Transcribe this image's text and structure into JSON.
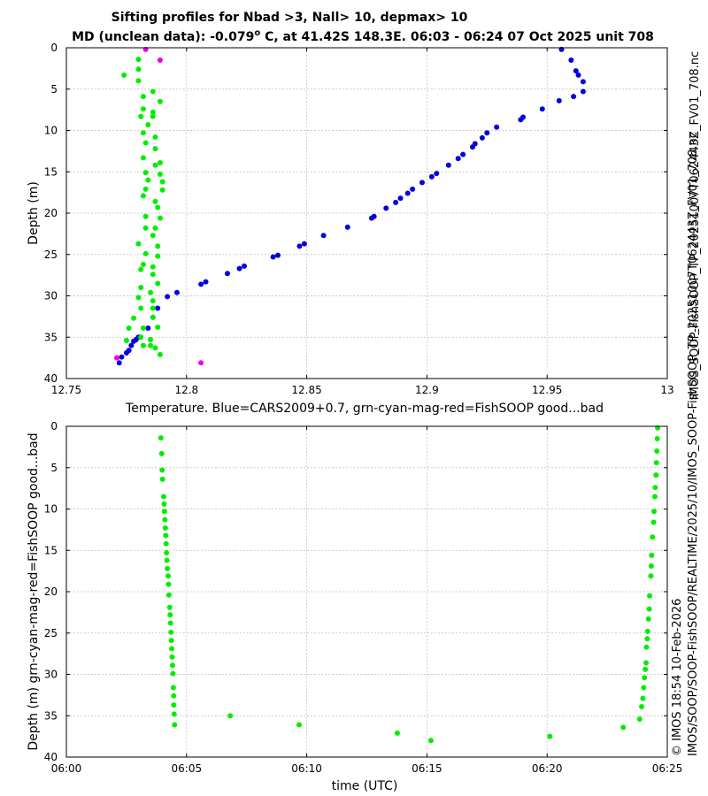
{
  "title": {
    "line1": "Sifting profiles for Nbad >3, Nall> 10, depmax> 10",
    "line2_prefix": "MD (unclean data): -0.079",
    "line2_sup": "o",
    "line2_suffix": " C, at 41.42S 148.3E. 06:03 - 06:24 07 Oct 2025 unit 708"
  },
  "side_labels": {
    "right": "IMOS_SOOP-FishSOOP_TP_20251007T062443Z_FV01_708.nc",
    "bottom_right_line1": "© IMOS 18:54 10-Feb-2026",
    "bottom_right_line2": "IMOS/SOOP/SOOP-FishSOOP/REALTIME/2025/10/IMOS_SOOP-FishSOOP_TP_20251007T062443Z_FV01_708.nc"
  },
  "colors": {
    "blue": "#0000dd",
    "green": "#00ee00",
    "magenta": "#ee00ee"
  },
  "chart_data": [
    {
      "type": "scatter",
      "xlabel": "Temperature. Blue=CARS2009+0.7, grn-cyan-mag-red=FishSOOP good...bad",
      "ylabel": "Depth (m)",
      "xlim": [
        12.75,
        13.0
      ],
      "ylim": [
        0,
        40
      ],
      "y_inverted": true,
      "grid": true,
      "xticks": [
        12.75,
        12.8,
        12.85,
        12.9,
        12.95,
        13.0
      ],
      "xtick_labels": [
        "12.75",
        "12.8",
        "12.85",
        "12.9",
        "12.95",
        "13"
      ],
      "yticks": [
        0,
        5,
        10,
        15,
        20,
        25,
        30,
        35,
        40
      ],
      "ytick_labels": [
        "0",
        "5",
        "10",
        "15",
        "20",
        "25",
        "30",
        "35",
        "40"
      ],
      "series": [
        {
          "color": "blue",
          "points": [
            [
              12.956,
              0.2
            ],
            [
              12.96,
              1.5
            ],
            [
              12.962,
              2.8
            ],
            [
              12.963,
              3.3
            ],
            [
              12.965,
              4.1
            ],
            [
              12.965,
              5.3
            ],
            [
              12.961,
              5.9
            ],
            [
              12.955,
              6.4
            ],
            [
              12.948,
              7.4
            ],
            [
              12.94,
              8.4
            ],
            [
              12.939,
              8.7
            ],
            [
              12.929,
              9.6
            ],
            [
              12.925,
              10.3
            ],
            [
              12.923,
              10.9
            ],
            [
              12.92,
              11.6
            ],
            [
              12.919,
              12.0
            ],
            [
              12.915,
              12.9
            ],
            [
              12.913,
              13.4
            ],
            [
              12.909,
              14.2
            ],
            [
              12.904,
              15.2
            ],
            [
              12.902,
              15.6
            ],
            [
              12.898,
              16.3
            ],
            [
              12.894,
              17.1
            ],
            [
              12.892,
              17.6
            ],
            [
              12.889,
              18.2
            ],
            [
              12.887,
              18.7
            ],
            [
              12.883,
              19.4
            ],
            [
              12.878,
              20.4
            ],
            [
              12.877,
              20.6
            ],
            [
              12.867,
              21.7
            ],
            [
              12.857,
              22.7
            ],
            [
              12.849,
              23.7
            ],
            [
              12.847,
              24.0
            ],
            [
              12.838,
              25.1
            ],
            [
              12.836,
              25.3
            ],
            [
              12.824,
              26.4
            ],
            [
              12.822,
              26.7
            ],
            [
              12.817,
              27.3
            ],
            [
              12.808,
              28.3
            ],
            [
              12.806,
              28.6
            ],
            [
              12.796,
              29.6
            ],
            [
              12.792,
              30.1
            ],
            [
              12.788,
              31.5
            ],
            [
              12.786,
              32.6
            ],
            [
              12.784,
              33.9
            ],
            [
              12.78,
              35.0
            ],
            [
              12.779,
              35.3
            ],
            [
              12.778,
              35.5
            ],
            [
              12.777,
              36.0
            ],
            [
              12.776,
              36.6
            ],
            [
              12.775,
              36.9
            ],
            [
              12.773,
              37.4
            ],
            [
              12.772,
              38.1
            ]
          ]
        },
        {
          "color": "green",
          "points": [
            [
              12.78,
              1.4
            ],
            [
              12.78,
              2.6
            ],
            [
              12.774,
              3.3
            ],
            [
              12.78,
              4.0
            ],
            [
              12.786,
              5.3
            ],
            [
              12.789,
              6.5
            ],
            [
              12.782,
              5.9
            ],
            [
              12.782,
              7.4
            ],
            [
              12.786,
              7.8
            ],
            [
              12.781,
              8.3
            ],
            [
              12.786,
              8.3
            ],
            [
              12.784,
              9.3
            ],
            [
              12.782,
              10.3
            ],
            [
              12.787,
              10.8
            ],
            [
              12.783,
              11.5
            ],
            [
              12.787,
              12.2
            ],
            [
              12.782,
              13.3
            ],
            [
              12.789,
              13.9
            ],
            [
              12.787,
              14.2
            ],
            [
              12.783,
              15.1
            ],
            [
              12.789,
              15.3
            ],
            [
              12.784,
              16.0
            ],
            [
              12.79,
              16.2
            ],
            [
              12.79,
              17.2
            ],
            [
              12.783,
              17.1
            ],
            [
              12.782,
              17.9
            ],
            [
              12.787,
              18.6
            ],
            [
              12.788,
              19.3
            ],
            [
              12.783,
              20.4
            ],
            [
              12.789,
              20.6
            ],
            [
              12.783,
              21.8
            ],
            [
              12.787,
              21.8
            ],
            [
              12.786,
              22.7
            ],
            [
              12.78,
              23.7
            ],
            [
              12.788,
              24.0
            ],
            [
              12.783,
              24.9
            ],
            [
              12.788,
              25.2
            ],
            [
              12.782,
              26.2
            ],
            [
              12.786,
              26.5
            ],
            [
              12.781,
              26.8
            ],
            [
              12.786,
              27.4
            ],
            [
              12.788,
              28.5
            ],
            [
              12.781,
              29.0
            ],
            [
              12.785,
              29.6
            ],
            [
              12.78,
              30.2
            ],
            [
              12.786,
              30.6
            ],
            [
              12.781,
              31.5
            ],
            [
              12.786,
              31.5
            ],
            [
              12.778,
              32.7
            ],
            [
              12.786,
              32.6
            ],
            [
              12.776,
              33.9
            ],
            [
              12.782,
              33.9
            ],
            [
              12.788,
              33.8
            ],
            [
              12.775,
              35.4
            ],
            [
              12.781,
              35.0
            ],
            [
              12.785,
              35.3
            ],
            [
              12.782,
              36.0
            ],
            [
              12.785,
              36.0
            ],
            [
              12.787,
              36.3
            ],
            [
              12.789,
              37.1
            ]
          ]
        },
        {
          "color": "magenta",
          "points": [
            [
              12.783,
              0.2
            ],
            [
              12.789,
              1.5
            ],
            [
              12.771,
              37.5
            ],
            [
              12.806,
              38.1
            ]
          ]
        }
      ]
    },
    {
      "type": "scatter",
      "xlabel": "time (UTC)",
      "ylabel": "Depth (m) grn-cyan-mag-red=FishSOOP good...bad",
      "xlim": [
        "06:00",
        "06:25"
      ],
      "ylim": [
        0,
        40
      ],
      "y_inverted": true,
      "grid": true,
      "xticks": [
        "06:00",
        "06:05",
        "06:10",
        "06:15",
        "06:20",
        "06:25"
      ],
      "yticks": [
        0,
        5,
        10,
        15,
        20,
        25,
        30,
        35,
        40
      ],
      "ytick_labels": [
        "0",
        "5",
        "10",
        "15",
        "20",
        "25",
        "30",
        "35",
        "40"
      ],
      "series": [
        {
          "color": "green",
          "points": [
            [
              "06:03:56",
              1.4
            ],
            [
              "06:03:58",
              3.3
            ],
            [
              "06:03:59",
              5.3
            ],
            [
              "06:04:00",
              6.4
            ],
            [
              "06:04:03",
              8.5
            ],
            [
              "06:04:04",
              9.4
            ],
            [
              "06:04:05",
              10.3
            ],
            [
              "06:04:06",
              11.3
            ],
            [
              "06:04:07",
              12.3
            ],
            [
              "06:04:08",
              13.2
            ],
            [
              "06:04:09",
              14.2
            ],
            [
              "06:04:10",
              15.3
            ],
            [
              "06:04:11",
              16.2
            ],
            [
              "06:04:12",
              17.2
            ],
            [
              "06:04:14",
              18.1
            ],
            [
              "06:04:15",
              19.1
            ],
            [
              "06:04:16",
              20.4
            ],
            [
              "06:04:18",
              21.9
            ],
            [
              "06:04:19",
              22.8
            ],
            [
              "06:04:20",
              23.8
            ],
            [
              "06:04:21",
              24.9
            ],
            [
              "06:04:22",
              25.9
            ],
            [
              "06:04:23",
              26.9
            ],
            [
              "06:04:24",
              27.9
            ],
            [
              "06:04:25",
              28.9
            ],
            [
              "06:04:26",
              29.9
            ],
            [
              "06:04:27",
              31.6
            ],
            [
              "06:04:28",
              32.6
            ],
            [
              "06:04:28",
              33.7
            ],
            [
              "06:04:29",
              34.8
            ],
            [
              "06:04:30",
              36.1
            ],
            [
              "06:06:49",
              35.0
            ],
            [
              "06:09:41",
              36.1
            ],
            [
              "06:13:46",
              37.1
            ],
            [
              "06:15:10",
              38.0
            ],
            [
              "06:20:07",
              37.5
            ],
            [
              "06:23:10",
              36.4
            ],
            [
              "06:23:51",
              35.4
            ],
            [
              "06:23:56",
              33.9
            ],
            [
              "06:23:59",
              32.9
            ],
            [
              "06:24:01",
              31.6
            ],
            [
              "06:24:03",
              30.4
            ],
            [
              "06:24:05",
              29.4
            ],
            [
              "06:24:07",
              28.6
            ],
            [
              "06:24:08",
              26.7
            ],
            [
              "06:24:10",
              25.7
            ],
            [
              "06:24:11",
              24.8
            ],
            [
              "06:24:13",
              23.3
            ],
            [
              "06:24:15",
              22.1
            ],
            [
              "06:24:16",
              20.5
            ],
            [
              "06:24:19",
              18.1
            ],
            [
              "06:24:20",
              16.9
            ],
            [
              "06:24:21",
              15.6
            ],
            [
              "06:24:23",
              13.4
            ],
            [
              "06:24:26",
              11.6
            ],
            [
              "06:24:27",
              10.3
            ],
            [
              "06:24:29",
              8.5
            ],
            [
              "06:24:30",
              7.4
            ],
            [
              "06:24:32",
              5.9
            ],
            [
              "06:24:33",
              4.4
            ],
            [
              "06:24:34",
              3.0
            ],
            [
              "06:24:35",
              1.5
            ],
            [
              "06:24:36",
              0.2
            ]
          ]
        }
      ]
    }
  ]
}
